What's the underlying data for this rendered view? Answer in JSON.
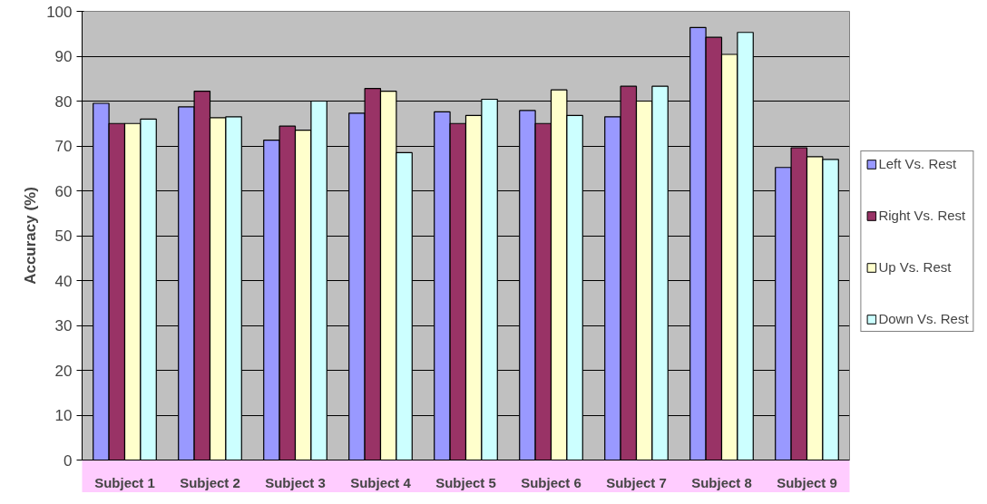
{
  "chart_data": {
    "type": "bar",
    "ylabel": "Accuracy (%)",
    "categories": [
      "Subject 1",
      "Subject 2",
      "Subject 3",
      "Subject 4",
      "Subject 5",
      "Subject 6",
      "Subject 7",
      "Subject 8",
      "Subject 9"
    ],
    "series": [
      {
        "name": "Left Vs. Rest",
        "color": "#9999ff",
        "values": [
          79.5,
          78.7,
          71.3,
          77.3,
          77.6,
          77.9,
          76.5,
          96.4,
          65.2
        ]
      },
      {
        "name": "Right Vs. Rest",
        "color": "#993366",
        "values": [
          75,
          82.2,
          74.4,
          82.8,
          75,
          75,
          83.3,
          94.2,
          69.6
        ]
      },
      {
        "name": "Up Vs. Rest",
        "color": "#ffffcc",
        "values": [
          75,
          76.3,
          73.5,
          82.2,
          76.8,
          82.5,
          80,
          90.4,
          67.6
        ]
      },
      {
        "name": "Down Vs. Rest",
        "color": "#ccffff",
        "values": [
          76,
          76.5,
          80,
          68.5,
          80.4,
          76.8,
          83.3,
          95.3,
          67
        ]
      }
    ],
    "ylim": [
      0,
      100
    ],
    "yticks": [
      0,
      10,
      20,
      30,
      40,
      50,
      60,
      70,
      80,
      90,
      100
    ],
    "grid": "y",
    "legend": "right"
  }
}
